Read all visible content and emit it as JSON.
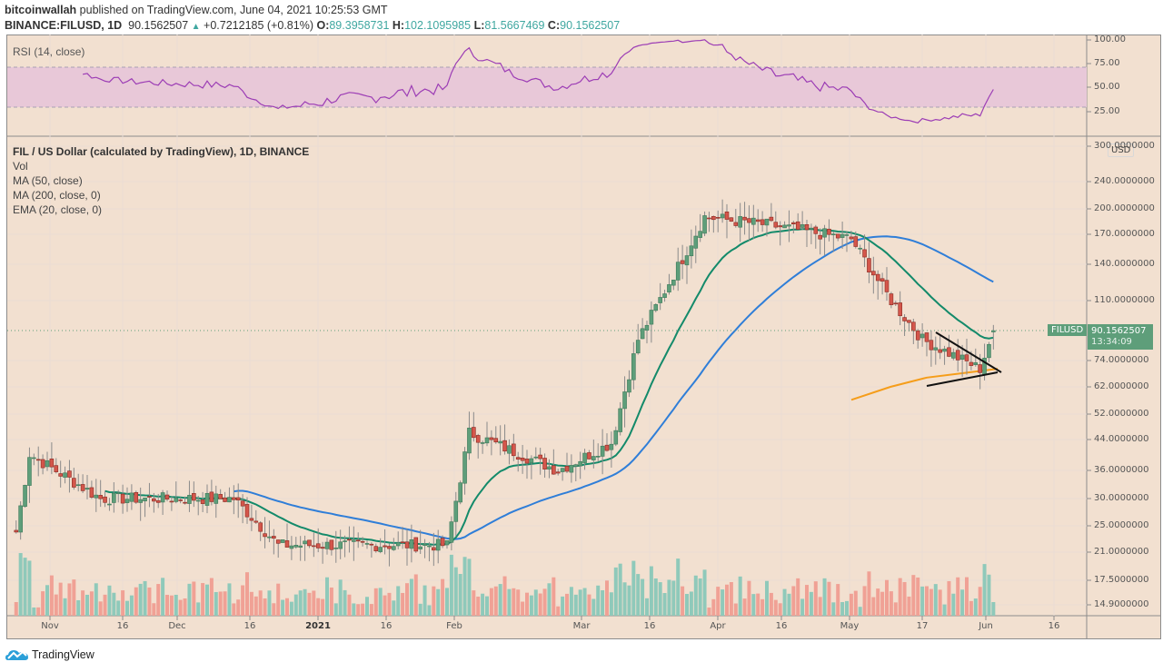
{
  "header": {
    "publisher": "bitcoinwallah",
    "published_text": "published on TradingView.com, June 04, 2021 10:25:53 GMT",
    "symbol": "BINANCE:FILUSD, 1D",
    "last": "90.1562507",
    "change": "+0.7212185 (+0.81%)",
    "o_label": "O:",
    "o": "89.3958731",
    "h_label": "H:",
    "h": "102.1095985",
    "l_label": "L:",
    "l": "81.5667469",
    "c_label": "C:",
    "c": "90.1562507"
  },
  "rsi_pane": {
    "label": "RSI (14, close)",
    "axis": [
      "100.00",
      "75.00",
      "50.00",
      "25.00"
    ]
  },
  "price_pane": {
    "legend": {
      "title": "FIL / US Dollar (calculated by TradingView), 1D, BINANCE",
      "items": [
        "Vol",
        "MA (50, close)",
        "MA (200, close, 0)",
        "EMA (20, close, 0)"
      ]
    },
    "currency": "USD",
    "axis": [
      "300.0000000",
      "240.0000000",
      "200.0000000",
      "170.0000000",
      "140.0000000",
      "110.0000000",
      "74.0000000",
      "62.0000000",
      "52.0000000",
      "44.0000000",
      "36.0000000",
      "30.0000000",
      "25.0000000",
      "21.0000000",
      "17.5000000",
      "14.9000000"
    ],
    "symbol_tag": "FILUSD",
    "price_tag": "90.1562507",
    "countdown": "13:34:09"
  },
  "time_axis": [
    "Nov",
    "16",
    "Dec",
    "16",
    "2021",
    "16",
    "Feb",
    "Mar",
    "16",
    "Apr",
    "16",
    "May",
    "17",
    "Jun",
    "16"
  ],
  "footer": {
    "brand": "TradingView"
  },
  "colors": {
    "bull": "#5e9e7a",
    "bear": "#d4564b",
    "vol_bull": "#8fc9ba",
    "vol_bear": "#f0a195",
    "ema20": "#138a6a",
    "ma50": "#2f7ed8",
    "ma200": "#f59d1a",
    "rsi": "#9c3db5",
    "rsi_band": "#e8c8d8",
    "bg": "#f2e0d0"
  },
  "chart_data": {
    "type": "candlestick",
    "title": "FIL / US Dollar (calculated by TradingView), 1D, BINANCE",
    "ylabel": "USD",
    "yscale": "log",
    "ylim": [
      14,
      300
    ],
    "x_range": [
      "2020-10-25",
      "2021-06-25"
    ],
    "x_ticks": [
      "Nov",
      "16",
      "Dec",
      "16",
      "2021",
      "16",
      "Feb",
      "Mar",
      "16",
      "Apr",
      "16",
      "May",
      "17",
      "Jun",
      "16"
    ],
    "legend": [
      "Vol",
      "MA (50, close)",
      "MA (200, close, 0)",
      "EMA (20, close, 0)"
    ],
    "key_closes": [
      {
        "date": "2020-10-27",
        "close": 24
      },
      {
        "date": "2020-10-30",
        "close": 40
      },
      {
        "date": "2020-11-15",
        "close": 30
      },
      {
        "date": "2020-12-15",
        "close": 30
      },
      {
        "date": "2020-12-25",
        "close": 22
      },
      {
        "date": "2021-01-15",
        "close": 22
      },
      {
        "date": "2021-02-01",
        "close": 22
      },
      {
        "date": "2021-02-06",
        "close": 46
      },
      {
        "date": "2021-02-26",
        "close": 36
      },
      {
        "date": "2021-03-10",
        "close": 43
      },
      {
        "date": "2021-03-16",
        "close": 85
      },
      {
        "date": "2021-03-31",
        "close": 190
      },
      {
        "date": "2021-04-15",
        "close": 180
      },
      {
        "date": "2021-05-03",
        "close": 165
      },
      {
        "date": "2021-05-12",
        "close": 110
      },
      {
        "date": "2021-05-19",
        "close": 85
      },
      {
        "date": "2021-06-01",
        "close": 70
      },
      {
        "date": "2021-06-04",
        "close": 90.16
      }
    ],
    "last": {
      "open": 89.3958731,
      "high": 102.1095985,
      "low": 81.5667469,
      "close": 90.1562507
    },
    "rsi": {
      "period": 14,
      "bands": [
        30,
        70
      ],
      "range": [
        0,
        100
      ],
      "last": 50
    },
    "annotations": [
      "symmetrical triangle drawn late May to early June (~62 to ~90)"
    ]
  }
}
